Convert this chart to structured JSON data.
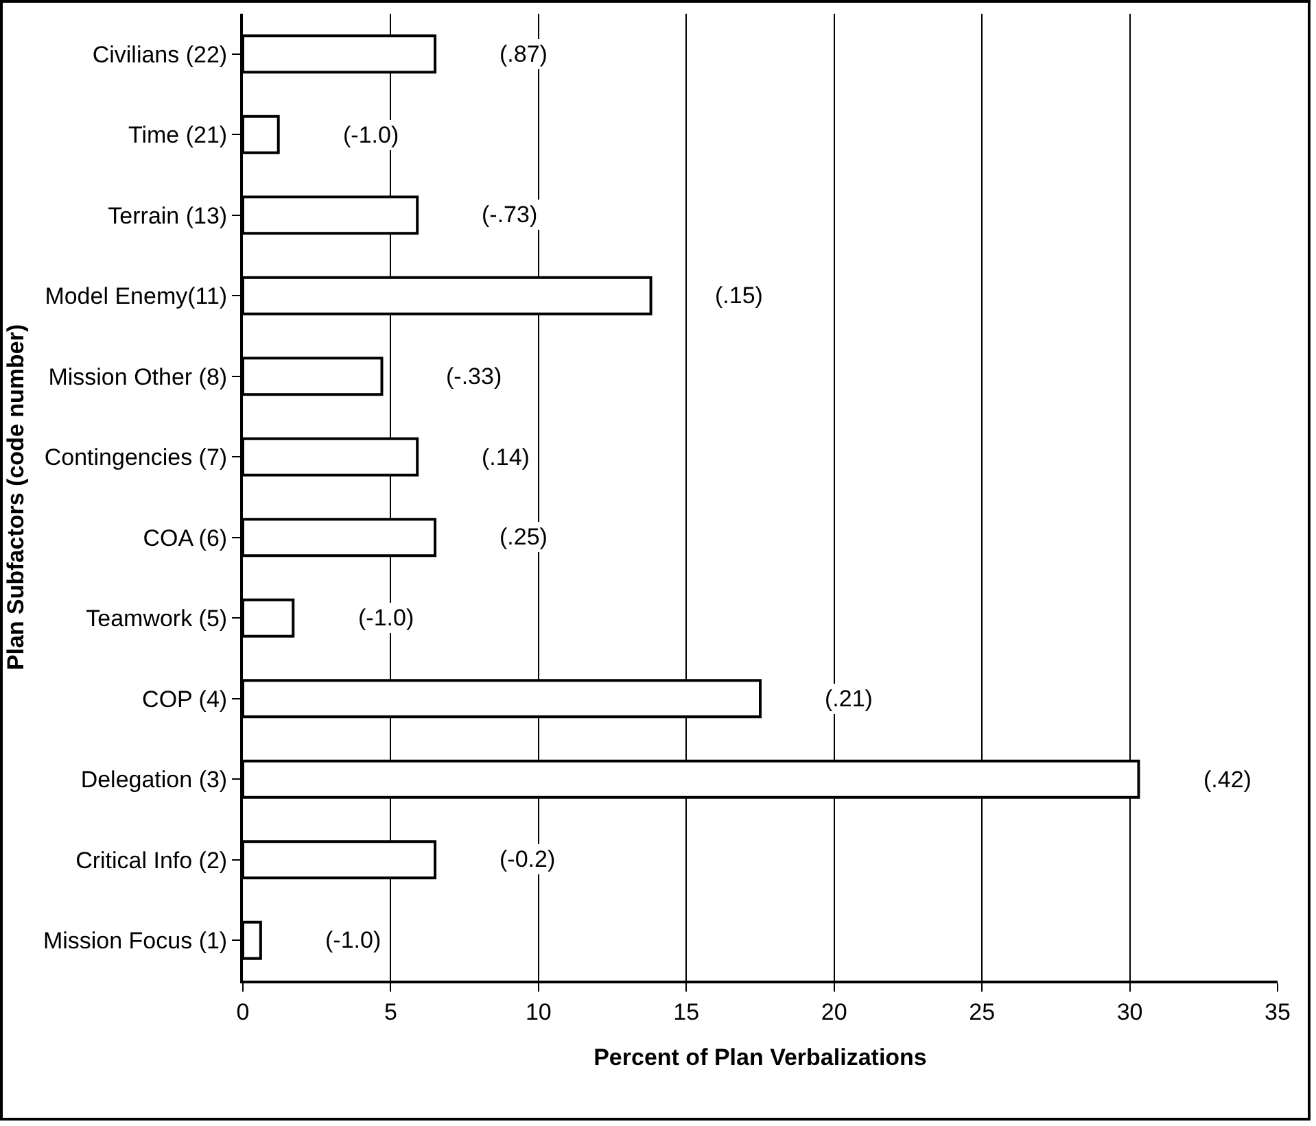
{
  "chart_data": {
    "type": "bar",
    "orientation": "horizontal",
    "xlabel": "Percent of Plan Verbalizations",
    "ylabel": "Plan Subfactors (code number)",
    "categories": [
      "Civilians (22)",
      "Time (21)",
      "Terrain (13)",
      "Model Enemy(11)",
      "Mission Other (8)",
      "Contingencies (7)",
      "COA (6)",
      "Teamwork (5)",
      "COP (4)",
      "Delegation (3)",
      "Critical Info (2)",
      "Mission Focus (1)"
    ],
    "values": [
      6.5,
      1.2,
      5.9,
      13.8,
      4.7,
      5.9,
      6.5,
      1.7,
      17.5,
      30.3,
      6.5,
      0.6
    ],
    "color": "#ffffff",
    "annotations": [
      "(.87)",
      "(-1.0)",
      "(-.73)",
      "(.15)",
      "(-.33)",
      "(.14)",
      "(.25)",
      "(-1.0)",
      "(.21)",
      "(.42)",
      "(-0.2)",
      "(-1.0)"
    ],
    "xlim": [
      0,
      35
    ],
    "xticks": [
      0,
      5,
      10,
      15,
      20,
      25,
      30,
      35
    ],
    "grid": "x"
  }
}
